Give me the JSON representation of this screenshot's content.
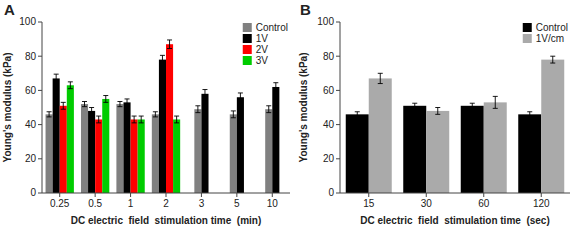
{
  "chart_data": [
    {
      "type": "bar",
      "title": "A",
      "xlabel": "DC electric  field  stimulation time  (min)",
      "ylabel": "Young's modulus (kPa)",
      "categories": [
        "0.25",
        "0.5",
        "1",
        "2",
        "3",
        "5",
        "10"
      ],
      "series": [
        {
          "name": "Control",
          "color": "#808080",
          "values": [
            46,
            52,
            52,
            46,
            49,
            46,
            49
          ],
          "errors": [
            1.5,
            1.5,
            1.5,
            1.5,
            2,
            2,
            2
          ]
        },
        {
          "name": "1V",
          "color": "#000000",
          "values": [
            67,
            48,
            53,
            78,
            58,
            56,
            62
          ],
          "errors": [
            2.5,
            2,
            2,
            2.5,
            2.5,
            2.5,
            2.5
          ]
        },
        {
          "name": "2V",
          "color": "#ff0000",
          "values": [
            51,
            43,
            43,
            87,
            null,
            null,
            null
          ],
          "errors": [
            2,
            2,
            2,
            2.5,
            null,
            null,
            null
          ]
        },
        {
          "name": "3V",
          "color": "#00cc00",
          "values": [
            63,
            55,
            43,
            43,
            null,
            null,
            null
          ],
          "errors": [
            2,
            2,
            2,
            2,
            null,
            null,
            null
          ]
        }
      ],
      "ylim": [
        0,
        100
      ],
      "yticks": [
        0,
        20,
        40,
        60,
        80,
        100
      ],
      "legend": "upper right",
      "grid": false
    },
    {
      "type": "bar",
      "title": "B",
      "xlabel": "DC electric  field  stimulation time  (sec)",
      "ylabel": "Young's modulus (kPa)",
      "categories": [
        "15",
        "30",
        "60",
        "120"
      ],
      "series": [
        {
          "name": "Control",
          "color": "#000000",
          "values": [
            46,
            51,
            51,
            46
          ],
          "errors": [
            1.5,
            1.5,
            1.5,
            1.5
          ]
        },
        {
          "name": "1V/cm",
          "color": "#aaaaaa",
          "values": [
            67,
            48,
            53,
            78
          ],
          "errors": [
            3,
            2,
            3.5,
            2
          ]
        }
      ],
      "ylim": [
        0,
        100
      ],
      "yticks": [
        0,
        20,
        40,
        60,
        80,
        100
      ],
      "legend": "upper right",
      "grid": false
    }
  ]
}
